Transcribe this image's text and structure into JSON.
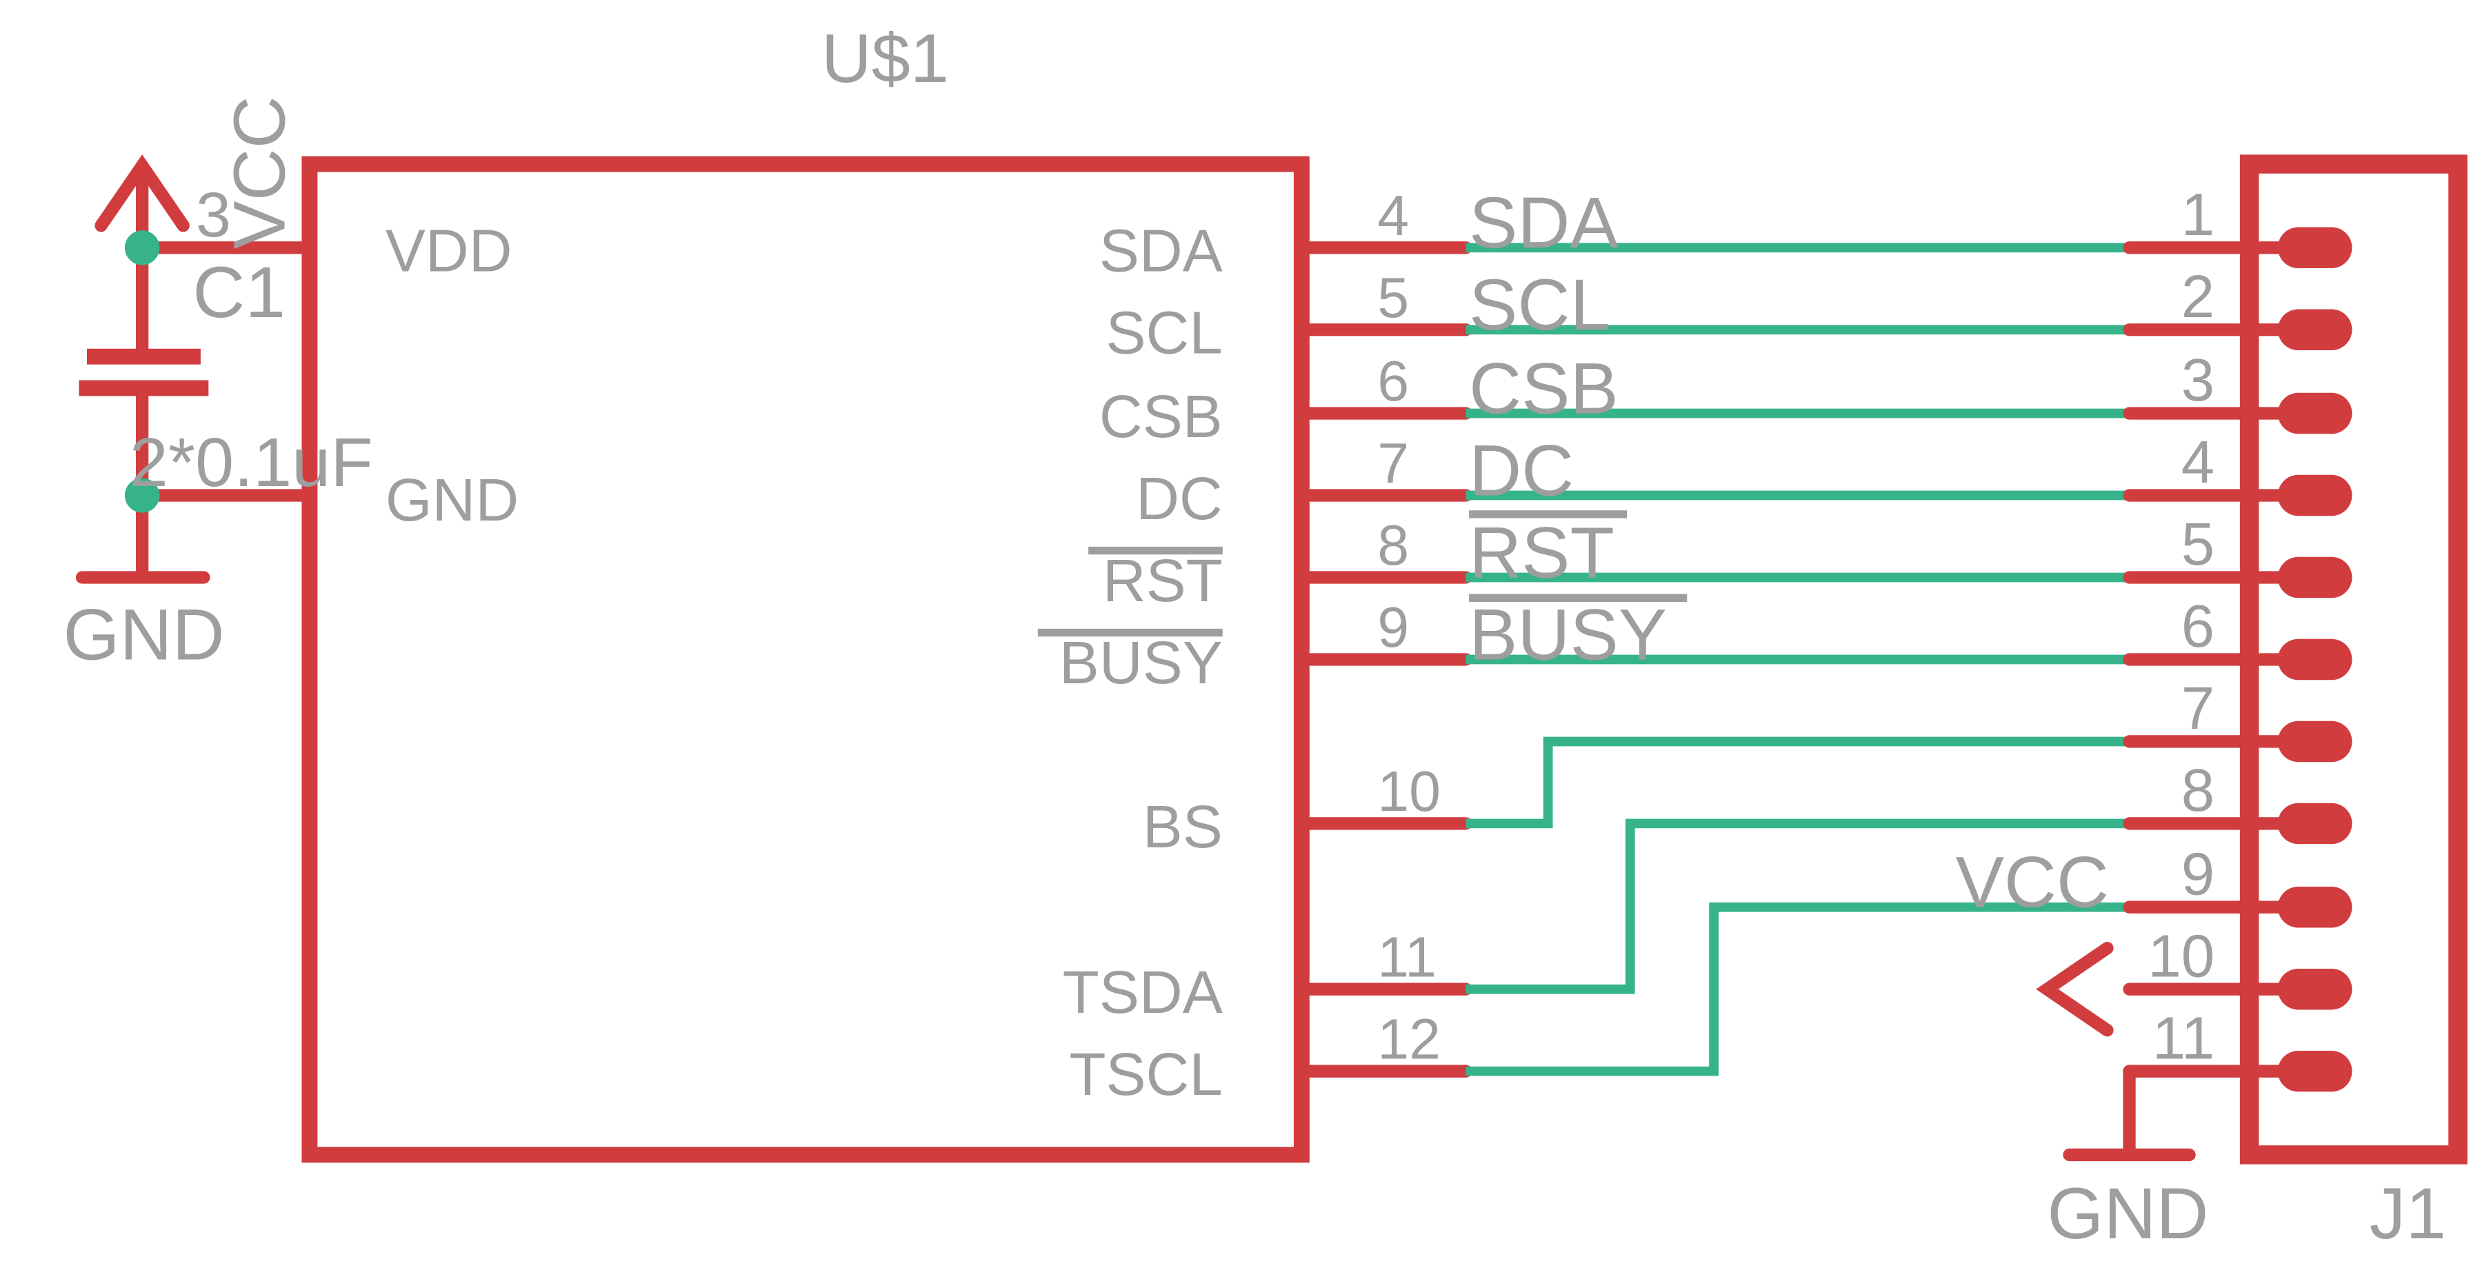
{
  "u1": {
    "name": "U$1",
    "pins_left": {
      "vdd": "VDD",
      "gnd": "GND"
    },
    "pins_right": [
      {
        "num": "4",
        "name": "SDA",
        "net": "SDA"
      },
      {
        "num": "5",
        "name": "SCL",
        "net": "SCL"
      },
      {
        "num": "6",
        "name": "CSB",
        "net": "CSB"
      },
      {
        "num": "7",
        "name": "DC",
        "net": "DC"
      },
      {
        "num": "8",
        "name": "RST",
        "net": "RST"
      },
      {
        "num": "9",
        "name": "BUSY",
        "net": "BUSY"
      },
      {
        "num": "10",
        "name": "BS"
      },
      {
        "num": "11",
        "name": "TSDA"
      },
      {
        "num": "12",
        "name": "TSCL"
      }
    ]
  },
  "c1": {
    "name": "C1",
    "value": "2*0.1uF",
    "pin_num": "3",
    "vcc_label": "VCC",
    "gnd_label": "GND"
  },
  "j1": {
    "name": "J1",
    "pins": [
      "1",
      "2",
      "3",
      "4",
      "5",
      "6",
      "7",
      "8",
      "9",
      "10",
      "11"
    ],
    "vcc_label": "VCC",
    "gnd_label": "GND"
  },
  "colors": {
    "component": "#d13c3f",
    "net": "#36b38a",
    "text": "#9e9e9e"
  }
}
